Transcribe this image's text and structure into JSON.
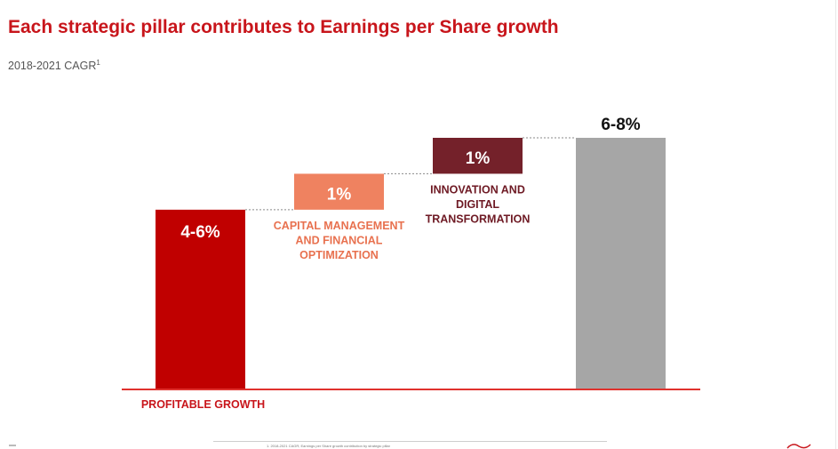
{
  "header": {
    "title": "Each strategic pillar contributes to Earnings per Share growth",
    "subtitle": "2018-2021 CAGR",
    "subtitle_sup": "1"
  },
  "colors": {
    "title": "#c8151b",
    "profitable_growth": "#c00000",
    "capital_management": "#ef8260",
    "innovation": "#74212a",
    "total": "#a6a6a6",
    "baseline": "#e0322e",
    "connector": "#8a8a8a",
    "label_red": "#c8151b",
    "label_orange": "#e8714f",
    "label_maroon": "#6e1a24"
  },
  "footer": {
    "footnote": "1. 2018-2021 CAGR; Earnings per Share growth contribution by strategic pillar"
  },
  "chart_data": {
    "type": "bar",
    "subtype": "waterfall",
    "title": "Each strategic pillar contributes to Earnings per Share growth",
    "subtitle": "2018-2021 CAGR",
    "unit": "%",
    "ylim": [
      0,
      8
    ],
    "grid": false,
    "legend": "none",
    "bars": [
      {
        "key": "profitable_growth",
        "label_lines": [
          "PROFITABLE GROWTH"
        ],
        "value_label": "4-6%",
        "start": 0,
        "end": 5,
        "label_position": "below"
      },
      {
        "key": "capital_management",
        "label_lines": [
          "CAPITAL MANAGEMENT",
          "AND FINANCIAL",
          "OPTIMIZATION"
        ],
        "value_label": "1%",
        "start": 5,
        "end": 6,
        "label_position": "below-bar"
      },
      {
        "key": "innovation",
        "label_lines": [
          "INNOVATION AND",
          "DIGITAL",
          "TRANSFORMATION"
        ],
        "value_label": "1%",
        "start": 6,
        "end": 7,
        "label_position": "below-bar"
      },
      {
        "key": "total",
        "label_lines": [],
        "value_label": "6-8%",
        "start": 0,
        "end": 7,
        "label_position": "above"
      }
    ]
  }
}
